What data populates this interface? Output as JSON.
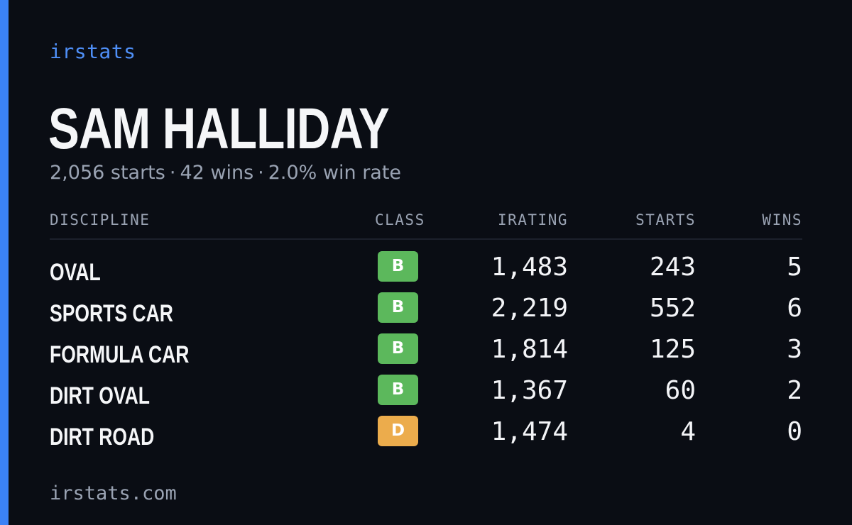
{
  "brand": "irstats",
  "driver_name": "SAM HALLIDAY",
  "summary": {
    "starts": "2,056 starts",
    "wins": "42 wins",
    "win_rate": "2.0% win rate",
    "separator": "·"
  },
  "table": {
    "headers": {
      "discipline": "DISCIPLINE",
      "class": "CLASS",
      "irating": "IRATING",
      "starts": "STARTS",
      "wins": "WINS"
    },
    "rows": [
      {
        "discipline": "OVAL",
        "class": "B",
        "class_color": "#5cb85c",
        "irating": "1,483",
        "starts": "243",
        "wins": "5"
      },
      {
        "discipline": "SPORTS CAR",
        "class": "B",
        "class_color": "#5cb85c",
        "irating": "2,219",
        "starts": "552",
        "wins": "6"
      },
      {
        "discipline": "FORMULA CAR",
        "class": "B",
        "class_color": "#5cb85c",
        "irating": "1,814",
        "starts": "125",
        "wins": "3"
      },
      {
        "discipline": "DIRT OVAL",
        "class": "B",
        "class_color": "#5cb85c",
        "irating": "1,367",
        "starts": "60",
        "wins": "2"
      },
      {
        "discipline": "DIRT ROAD",
        "class": "D",
        "class_color": "#ecac4c",
        "irating": "1,474",
        "starts": "4",
        "wins": "0"
      }
    ]
  },
  "footer": "irstats.com",
  "colors": {
    "accent": "#3b82f6",
    "background": "#0a0d14",
    "muted": "#9aa3b3"
  }
}
